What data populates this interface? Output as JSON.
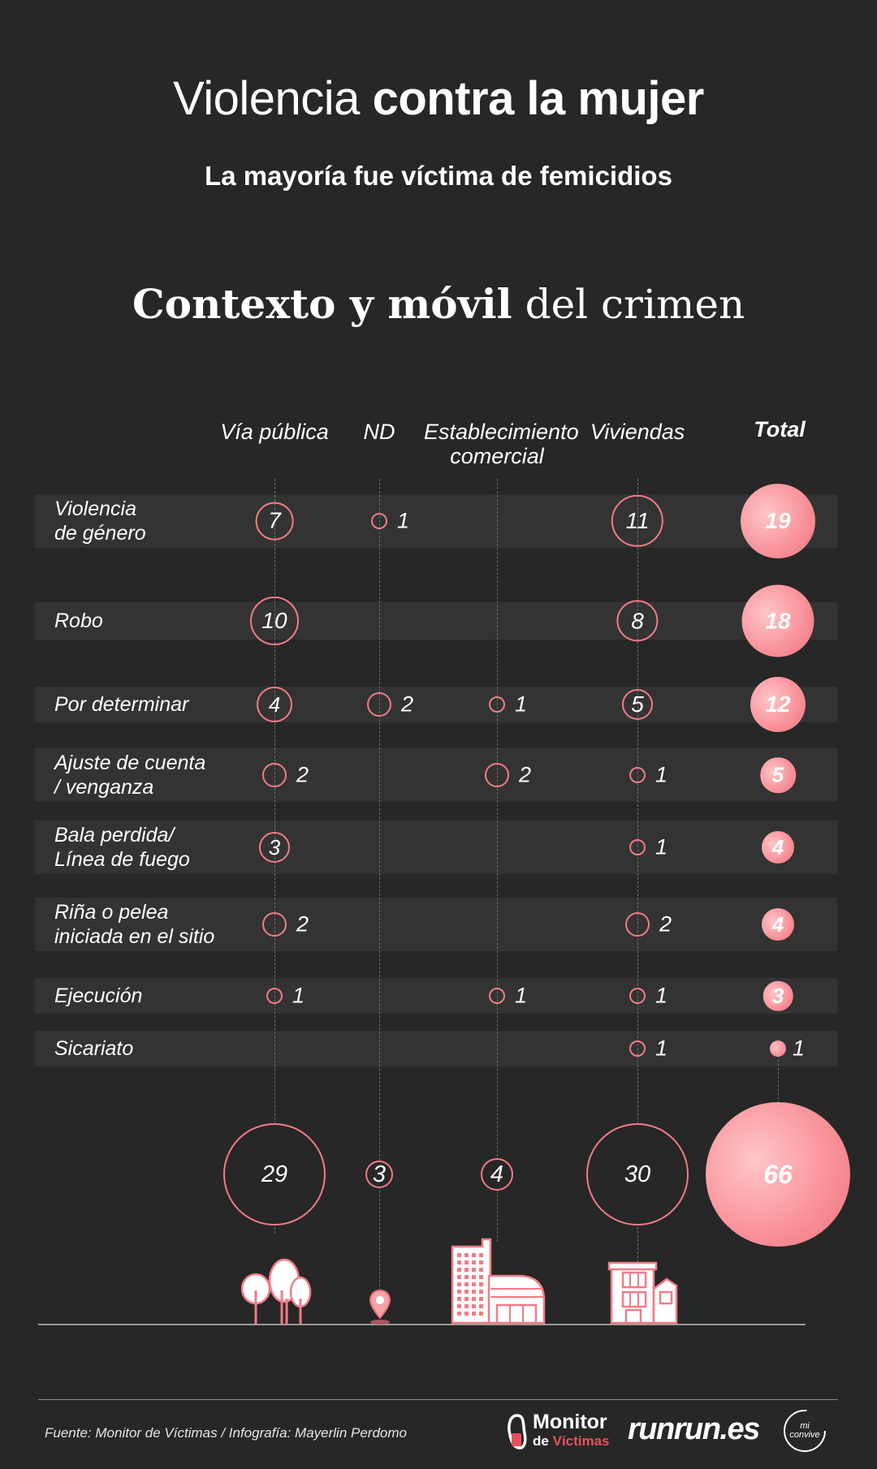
{
  "header": {
    "title_regular": "Violencia",
    "title_bold": "contra la mujer",
    "subtitle_regular": "La mayoría fue",
    "subtitle_bold": "víctima de femicidios"
  },
  "section": {
    "title_bold": "Contexto y móvil",
    "title_regular": "del crimen"
  },
  "columns": [
    {
      "label": "Vía pública",
      "icon": "trees-icon"
    },
    {
      "label": "ND",
      "icon": "map-pin-icon"
    },
    {
      "label": "Establecimiento comercial",
      "icon": "commercial-building-icon"
    },
    {
      "label": "Viviendas",
      "icon": "house-icon"
    },
    {
      "label": "Total",
      "icon": ""
    }
  ],
  "chart_data": {
    "type": "bubble-matrix",
    "title": "Contexto y móvil del crimen",
    "columns": [
      "Vía pública",
      "ND",
      "Establecimiento comercial",
      "Viviendas"
    ],
    "rows": [
      {
        "label": "Violencia\nde género",
        "values": [
          7,
          1,
          null,
          11
        ],
        "total": 19
      },
      {
        "label": "Robo",
        "values": [
          10,
          null,
          null,
          8
        ],
        "total": 18
      },
      {
        "label": "Por determinar",
        "values": [
          4,
          2,
          1,
          5
        ],
        "total": 12
      },
      {
        "label": "Ajuste de cuenta\n/ venganza",
        "values": [
          2,
          null,
          2,
          1
        ],
        "total": 5
      },
      {
        "label": "Bala perdida/\nLínea de fuego",
        "values": [
          3,
          null,
          null,
          1
        ],
        "total": 4
      },
      {
        "label": "Riña o pelea\niniciada en el sitio",
        "values": [
          2,
          null,
          null,
          2
        ],
        "total": 4
      },
      {
        "label": "Ejecución",
        "values": [
          1,
          null,
          1,
          1
        ],
        "total": 3
      },
      {
        "label": "Sicariato",
        "values": [
          null,
          null,
          null,
          1
        ],
        "total": 1
      }
    ],
    "column_totals": [
      29,
      3,
      4,
      30
    ],
    "grand_total": 66,
    "colors": {
      "accent": "#f07c86",
      "fill_light": "#ffc6c9",
      "fill_dark": "#ee6f7a",
      "background": "#272727",
      "band": "#333333"
    }
  },
  "footer": {
    "source": "Fuente: Monitor de Víctimas / Infografía: Mayerlin Perdomo",
    "logos": {
      "monitor_line1": "Monitor",
      "monitor_line2a": "de",
      "monitor_line2b": "Víctimas",
      "runrunes": "runrun.es",
      "convive_line1": "mi",
      "convive_line2": "convive"
    }
  }
}
